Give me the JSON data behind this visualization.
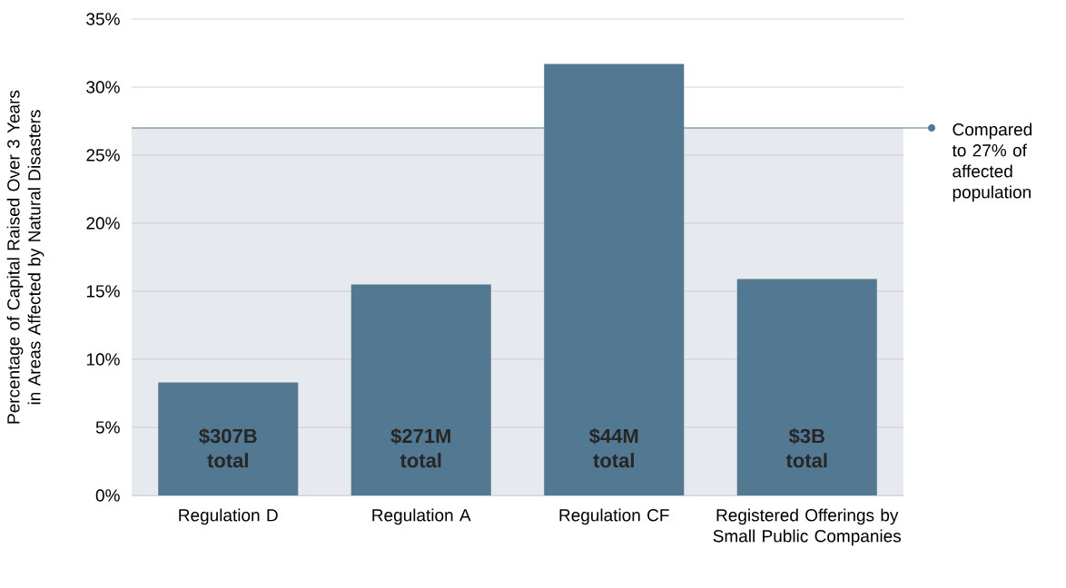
{
  "chart_data": {
    "type": "bar",
    "ylabel": "Percentage of Capital Raised Over 3 Years in Areas Affected by Natural Disasters",
    "categories": [
      "Regulation D",
      "Regulation A",
      "Regulation CF",
      "Registered Offerings by Small Public Companies"
    ],
    "values": [
      8.3,
      15.5,
      31.7,
      15.9
    ],
    "color": "#537891",
    "ylim": [
      0,
      35
    ],
    "yticks": [
      {
        "value": 0,
        "label": "0%"
      },
      {
        "value": 5,
        "label": "5%"
      },
      {
        "value": 10,
        "label": "10%"
      },
      {
        "value": 15,
        "label": "15%"
      },
      {
        "value": 20,
        "label": "20%"
      },
      {
        "value": 25,
        "label": "25%"
      },
      {
        "value": 30,
        "label": "30%"
      },
      {
        "value": 35,
        "label": "35%"
      }
    ],
    "grid": "y",
    "bands": [
      {
        "axis": "y",
        "from": 0,
        "to": 27,
        "color": "#e6e9ee"
      }
    ],
    "ref_lines": [
      {
        "axis": "y",
        "value": 27,
        "label": "Compared to 27% of affected population",
        "color": "#537891"
      }
    ],
    "annotations": [
      "$307B total",
      "$271M total",
      "$44M total",
      "$3B total"
    ]
  }
}
